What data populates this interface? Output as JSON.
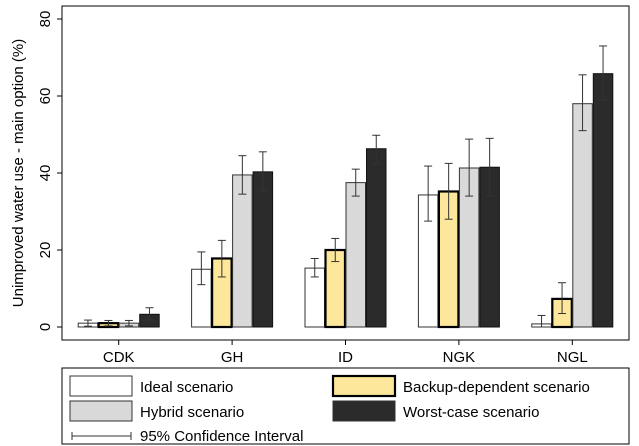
{
  "chart_data": {
    "type": "bar",
    "categories": [
      "CDK",
      "GH",
      "ID",
      "NGK",
      "NGL"
    ],
    "ylabel": "Unimproved water use - main option (%)",
    "xlabel": "",
    "ylim": [
      0,
      80
    ],
    "yticks": [
      0,
      20,
      40,
      60,
      80
    ],
    "grid": false,
    "legend_position": "bottom",
    "series": [
      {
        "name": "Ideal scenario",
        "color": "#ffffff",
        "values": [
          1.0,
          15.0,
          15.3,
          34.3,
          0.8
        ],
        "ci_low": [
          0.2,
          11.0,
          13.0,
          27.5,
          0.0
        ],
        "ci_high": [
          1.8,
          19.5,
          17.8,
          41.8,
          3.0
        ]
      },
      {
        "name": "Backup-dependent scenario",
        "color": "#fce79a",
        "values": [
          1.0,
          17.8,
          20.0,
          35.2,
          7.3
        ],
        "ci_low": [
          0.3,
          13.0,
          17.0,
          28.0,
          3.5
        ],
        "ci_high": [
          1.7,
          22.5,
          23.0,
          42.5,
          11.5
        ]
      },
      {
        "name": "Hybrid scenario",
        "color": "#d9d9d9",
        "values": [
          1.0,
          39.5,
          37.5,
          41.3,
          58.0
        ],
        "ci_low": [
          0.3,
          34.5,
          34.0,
          34.0,
          51.0
        ],
        "ci_high": [
          1.7,
          44.5,
          41.0,
          48.8,
          65.5
        ]
      },
      {
        "name": "Worst-case scenario",
        "color": "#2b2b2b",
        "values": [
          3.3,
          40.3,
          46.3,
          41.5,
          65.8
        ],
        "ci_low": [
          1.8,
          35.5,
          42.5,
          34.0,
          59.0
        ],
        "ci_high": [
          5.0,
          45.5,
          49.8,
          49.0,
          73.0
        ]
      }
    ],
    "legend": {
      "items": [
        {
          "label": "Ideal scenario",
          "color": "#ffffff"
        },
        {
          "label": "Backup-dependent scenario",
          "color": "#fce79a"
        },
        {
          "label": "Hybrid scenario",
          "color": "#d9d9d9"
        },
        {
          "label": "Worst-case scenario",
          "color": "#2b2b2b"
        }
      ],
      "ci_label": "95% Confidence Interval"
    }
  }
}
